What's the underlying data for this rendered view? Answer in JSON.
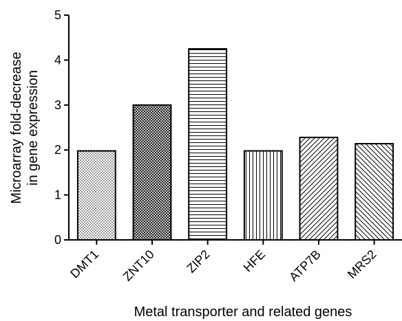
{
  "chart_data": {
    "type": "bar",
    "title": "",
    "xlabel": "Metal transporter and related genes",
    "ylabel_lines": [
      "Microarray fold-decrease",
      "in gene expression"
    ],
    "categories": [
      "DMT1",
      "ZNT10",
      "ZIP2",
      "HFE",
      "ATP7B",
      "MRS2"
    ],
    "values": [
      1.98,
      3.0,
      4.25,
      1.98,
      2.28,
      2.14
    ],
    "patterns": [
      "dots-fine",
      "crosshatch-dense",
      "horizontal-lines",
      "vertical-lines",
      "diagonal-up",
      "diagonal-down"
    ],
    "ylim": [
      0,
      5
    ],
    "yticks": [
      "0",
      "1",
      "2",
      "3",
      "4",
      "5"
    ],
    "grid": false,
    "legend": "none",
    "bar_fill": "#ffffff",
    "stroke_color": "#000000"
  }
}
